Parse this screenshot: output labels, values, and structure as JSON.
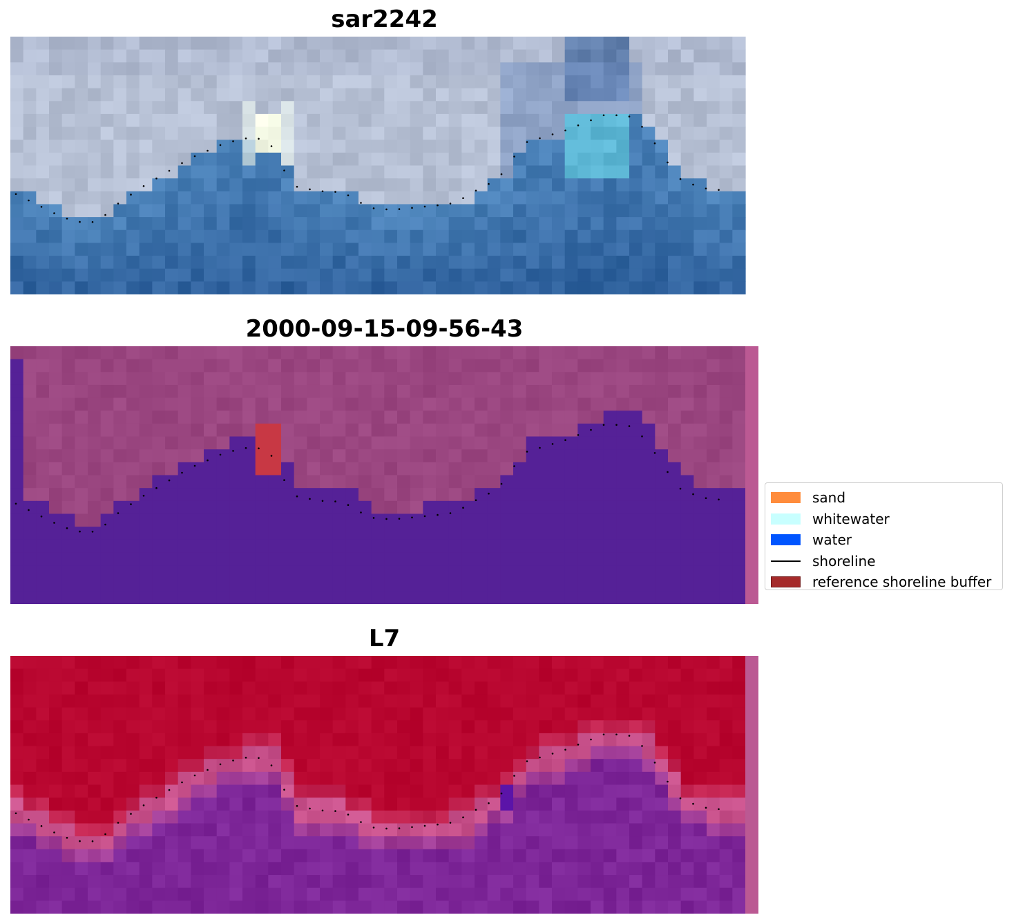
{
  "panels": [
    {
      "id": "rgb",
      "title": "sar2242",
      "scheme": "rgb"
    },
    {
      "id": "classified",
      "title": "2000-09-15-09-56-43",
      "scheme": "classified"
    },
    {
      "id": "index",
      "title": "L7",
      "scheme": "index"
    }
  ],
  "legend": {
    "items": [
      {
        "label": "sand",
        "type": "patch",
        "color": "#ff8c3c"
      },
      {
        "label": "whitewater",
        "type": "patch",
        "color": "#c8ffff"
      },
      {
        "label": "water",
        "type": "patch",
        "color": "#0055ff"
      },
      {
        "label": "shoreline",
        "type": "line",
        "color": "#000000"
      },
      {
        "label": "reference shoreline buffer",
        "type": "patch",
        "color": "#a52a2a"
      }
    ]
  },
  "grid": {
    "cols": 57,
    "rows": 20
  },
  "colors": {
    "classified_land": "#9a4680",
    "classified_water": "#552197",
    "classified_buffer": "#c83844",
    "classified_edge": "#bb5993",
    "index_land": "#b8062f",
    "index_water": "#7d2698",
    "index_transition": "#c9528c",
    "shoreline": "#000000"
  }
}
